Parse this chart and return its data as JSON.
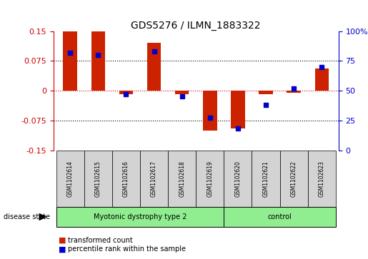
{
  "title": "GDS5276 / ILMN_1883322",
  "samples": [
    "GSM1102614",
    "GSM1102615",
    "GSM1102616",
    "GSM1102617",
    "GSM1102618",
    "GSM1102619",
    "GSM1102620",
    "GSM1102621",
    "GSM1102622",
    "GSM1102623"
  ],
  "red_values": [
    0.15,
    0.15,
    -0.008,
    0.12,
    -0.008,
    -0.1,
    -0.095,
    -0.008,
    -0.005,
    0.055
  ],
  "blue_values": [
    82,
    80,
    47,
    83,
    45,
    27,
    18,
    38,
    52,
    70
  ],
  "group1_label": "Myotonic dystrophy type 2",
  "group1_count": 6,
  "group2_label": "control",
  "group2_count": 4,
  "group_color": "#90EE90",
  "ylim_left": [
    -0.15,
    0.15
  ],
  "ylim_right": [
    0,
    100
  ],
  "yticks_left": [
    -0.15,
    -0.075,
    0,
    0.075,
    0.15
  ],
  "yticks_right": [
    0,
    25,
    50,
    75,
    100
  ],
  "left_color": "#cc0000",
  "right_color": "#0000cc",
  "zero_line_color": "#cc0000",
  "bar_color_red": "#cc2200",
  "bar_color_blue": "#0000cc",
  "tick_area_color": "#d3d3d3",
  "disease_state_label": "disease state",
  "legend_red": "transformed count",
  "legend_blue": "percentile rank within the sample",
  "bar_width": 0.5,
  "marker_size": 5
}
